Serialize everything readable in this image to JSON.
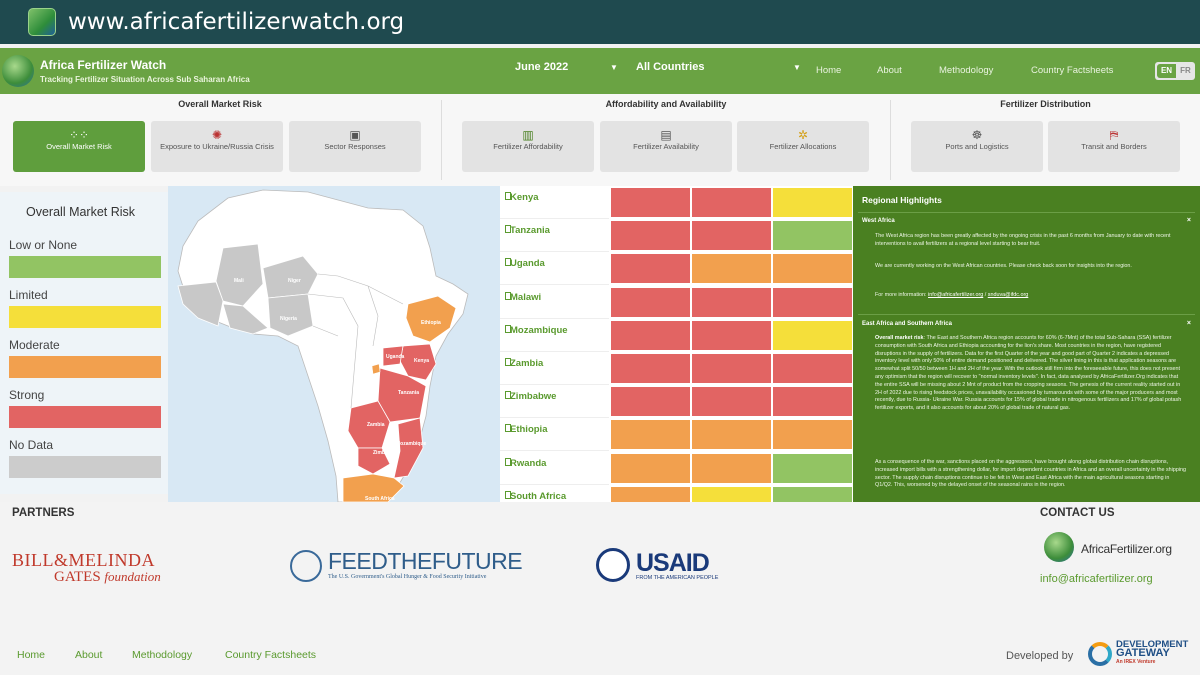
{
  "browser": {
    "url": "www.africafertilizerwatch.org"
  },
  "header": {
    "title": "Africa Fertilizer Watch",
    "subtitle": "Tracking Fertilizer Situation Across Sub Saharan Africa",
    "month_select": "June 2022",
    "country_select": "All Countries",
    "nav": [
      "Home",
      "About",
      "Methodology",
      "Country Factsheets"
    ],
    "lang": [
      "EN",
      "FR"
    ]
  },
  "categories": {
    "market_risk": {
      "title": "Overall Market Risk",
      "cards": [
        "Overall Market Risk",
        "Exposure to Ukraine/Russia Crisis",
        "Sector Responses"
      ]
    },
    "affordability": {
      "title": "Affordability and Availability",
      "cards": [
        "Fertilizer Affordability",
        "Fertilizer Availability",
        "Fertilizer Allocations"
      ]
    },
    "distribution": {
      "title": "Fertilizer Distribution",
      "cards": [
        "Ports and Logistics",
        "Transit and Borders"
      ]
    }
  },
  "legend": {
    "title": "Overall Market Risk",
    "items": [
      {
        "label": "Low or None",
        "color": "#92c463"
      },
      {
        "label": "Limited",
        "color": "#f5df3a"
      },
      {
        "label": "Moderate",
        "color": "#f2a04e"
      },
      {
        "label": "Strong",
        "color": "#e26463"
      },
      {
        "label": "No Data",
        "color": "#cccccc"
      }
    ]
  },
  "map": {
    "labels": [
      "Mali",
      "Niger",
      "Nigeria",
      "Ethiopia",
      "Uganda",
      "Kenya",
      "Tanzania",
      "Zambia",
      "Mozambique",
      "Zimbabwe",
      "South Africa"
    ]
  },
  "countries": [
    {
      "name": "Kenya",
      "risk": [
        "strong",
        "strong",
        "limited"
      ]
    },
    {
      "name": "Tanzania",
      "risk": [
        "strong",
        "strong",
        "low"
      ]
    },
    {
      "name": "Uganda",
      "risk": [
        "strong",
        "moderate",
        "moderate"
      ]
    },
    {
      "name": "Malawi",
      "risk": [
        "strong",
        "strong",
        "strong"
      ]
    },
    {
      "name": "Mozambique",
      "risk": [
        "strong",
        "strong",
        "limited"
      ]
    },
    {
      "name": "Zambia",
      "risk": [
        "strong",
        "strong",
        "strong"
      ]
    },
    {
      "name": "Zimbabwe",
      "risk": [
        "strong",
        "strong",
        "strong"
      ]
    },
    {
      "name": "Ethiopia",
      "risk": [
        "moderate",
        "moderate",
        "moderate"
      ]
    },
    {
      "name": "Rwanda",
      "risk": [
        "moderate",
        "moderate",
        "low"
      ]
    },
    {
      "name": "South Africa",
      "risk": [
        "moderate",
        "limited",
        "low"
      ]
    }
  ],
  "risk_colors": {
    "low": "#92c463",
    "limited": "#f5df3a",
    "moderate": "#f2a04e",
    "strong": "#e26463"
  },
  "highlights": {
    "title": "Regional Highlights",
    "west_title": "West Africa",
    "close": "×",
    "west_p1": "The West Africa region has been greatly affected by the ongoing crisis in the past 6 months from January to date with recent interventions to avail fertilizers at a regional level starting to bear fruit.",
    "west_p2": "We are currently working on the West African countries. Please check back soon for insights into the region.",
    "west_p3_prefix": "For more information: ",
    "west_email1": "info@africafertilizer.org",
    "west_sep": " / ",
    "west_email2": "snduva@ifdc.org",
    "east_title": "East Africa and Southern Africa",
    "east_bold": "Overall market risk",
    "east_p1": ": The East and Southern Africa region accounts for 60% (6-7Mnt) of the total Sub-Sahara (SSA) fertilizer consumption with South Africa and Ethiopia accounting for the lion's share. Most countries in the region, have registered disruptions in the supply of fertilizers. Data for the first Quarter of the year and good part of Quarter 2 indicates a depressed inventory level with only 50% of entire demand positioned and delivered. The silver lining in this is that application seasons are somewhat split 50/50 between 1H and 2H of the year. With the outlook still firm into the foreseeable future, this does not present any optimism that the region will recover to \"normal inventory levels\". In fact, data analysed by AfricaFertilizer.Org indicates that the entire SSA will be missing about 2 Mnt of product from the cropping seasons. The genesis of the current reality started out in 2H of 2022 due to rising feedstock prices, unavailability occasioned by turnarounds with some of the major producers and most recently, due to Russia- Ukraine War. Russia accounts for 15% of global trade in nitrogenous fertilizers and 17% of global potash fertilizer exports, and it also accounts for about 20% of global trade of natural gas.",
    "east_p2": "As a consequence of the war, sanctions placed on the aggressors, have brought along global distribution chain disruptions, increased import bills with a strengthening dollar, for import dependent countries in Africa and an overall uncertainty in the shipping sector. The supply chain disruptions continue to be felt in West and East Africa with the main agricultural seasons starting in Q1/Q2. This, worsened by the delayed onset of the seasonal rains in the region."
  },
  "footer": {
    "partners_title": "PARTNERS",
    "contact_title": "CONTACT US",
    "gates_l1": "BILL&MELINDA",
    "gates_l2": "GATES",
    "gates_l2b": "foundation",
    "ftf_main": "FEEDTHEFUTURE",
    "ftf_sub": "The U.S. Government's Global Hunger & Food Security Initiative",
    "usaid_main": "USAID",
    "usaid_sub": "FROM THE AMERICAN PEOPLE",
    "af_name": "AfricaFertilizer.org",
    "email": "info@africafertilizer.org",
    "links": [
      "Home",
      "About",
      "Methodology",
      "Country Factsheets"
    ],
    "developed_by": "Developed by",
    "dg_l1": "DEVELOPMENT",
    "dg_l2": "GATEWAY",
    "dg_l3": "An IREX Venture"
  }
}
